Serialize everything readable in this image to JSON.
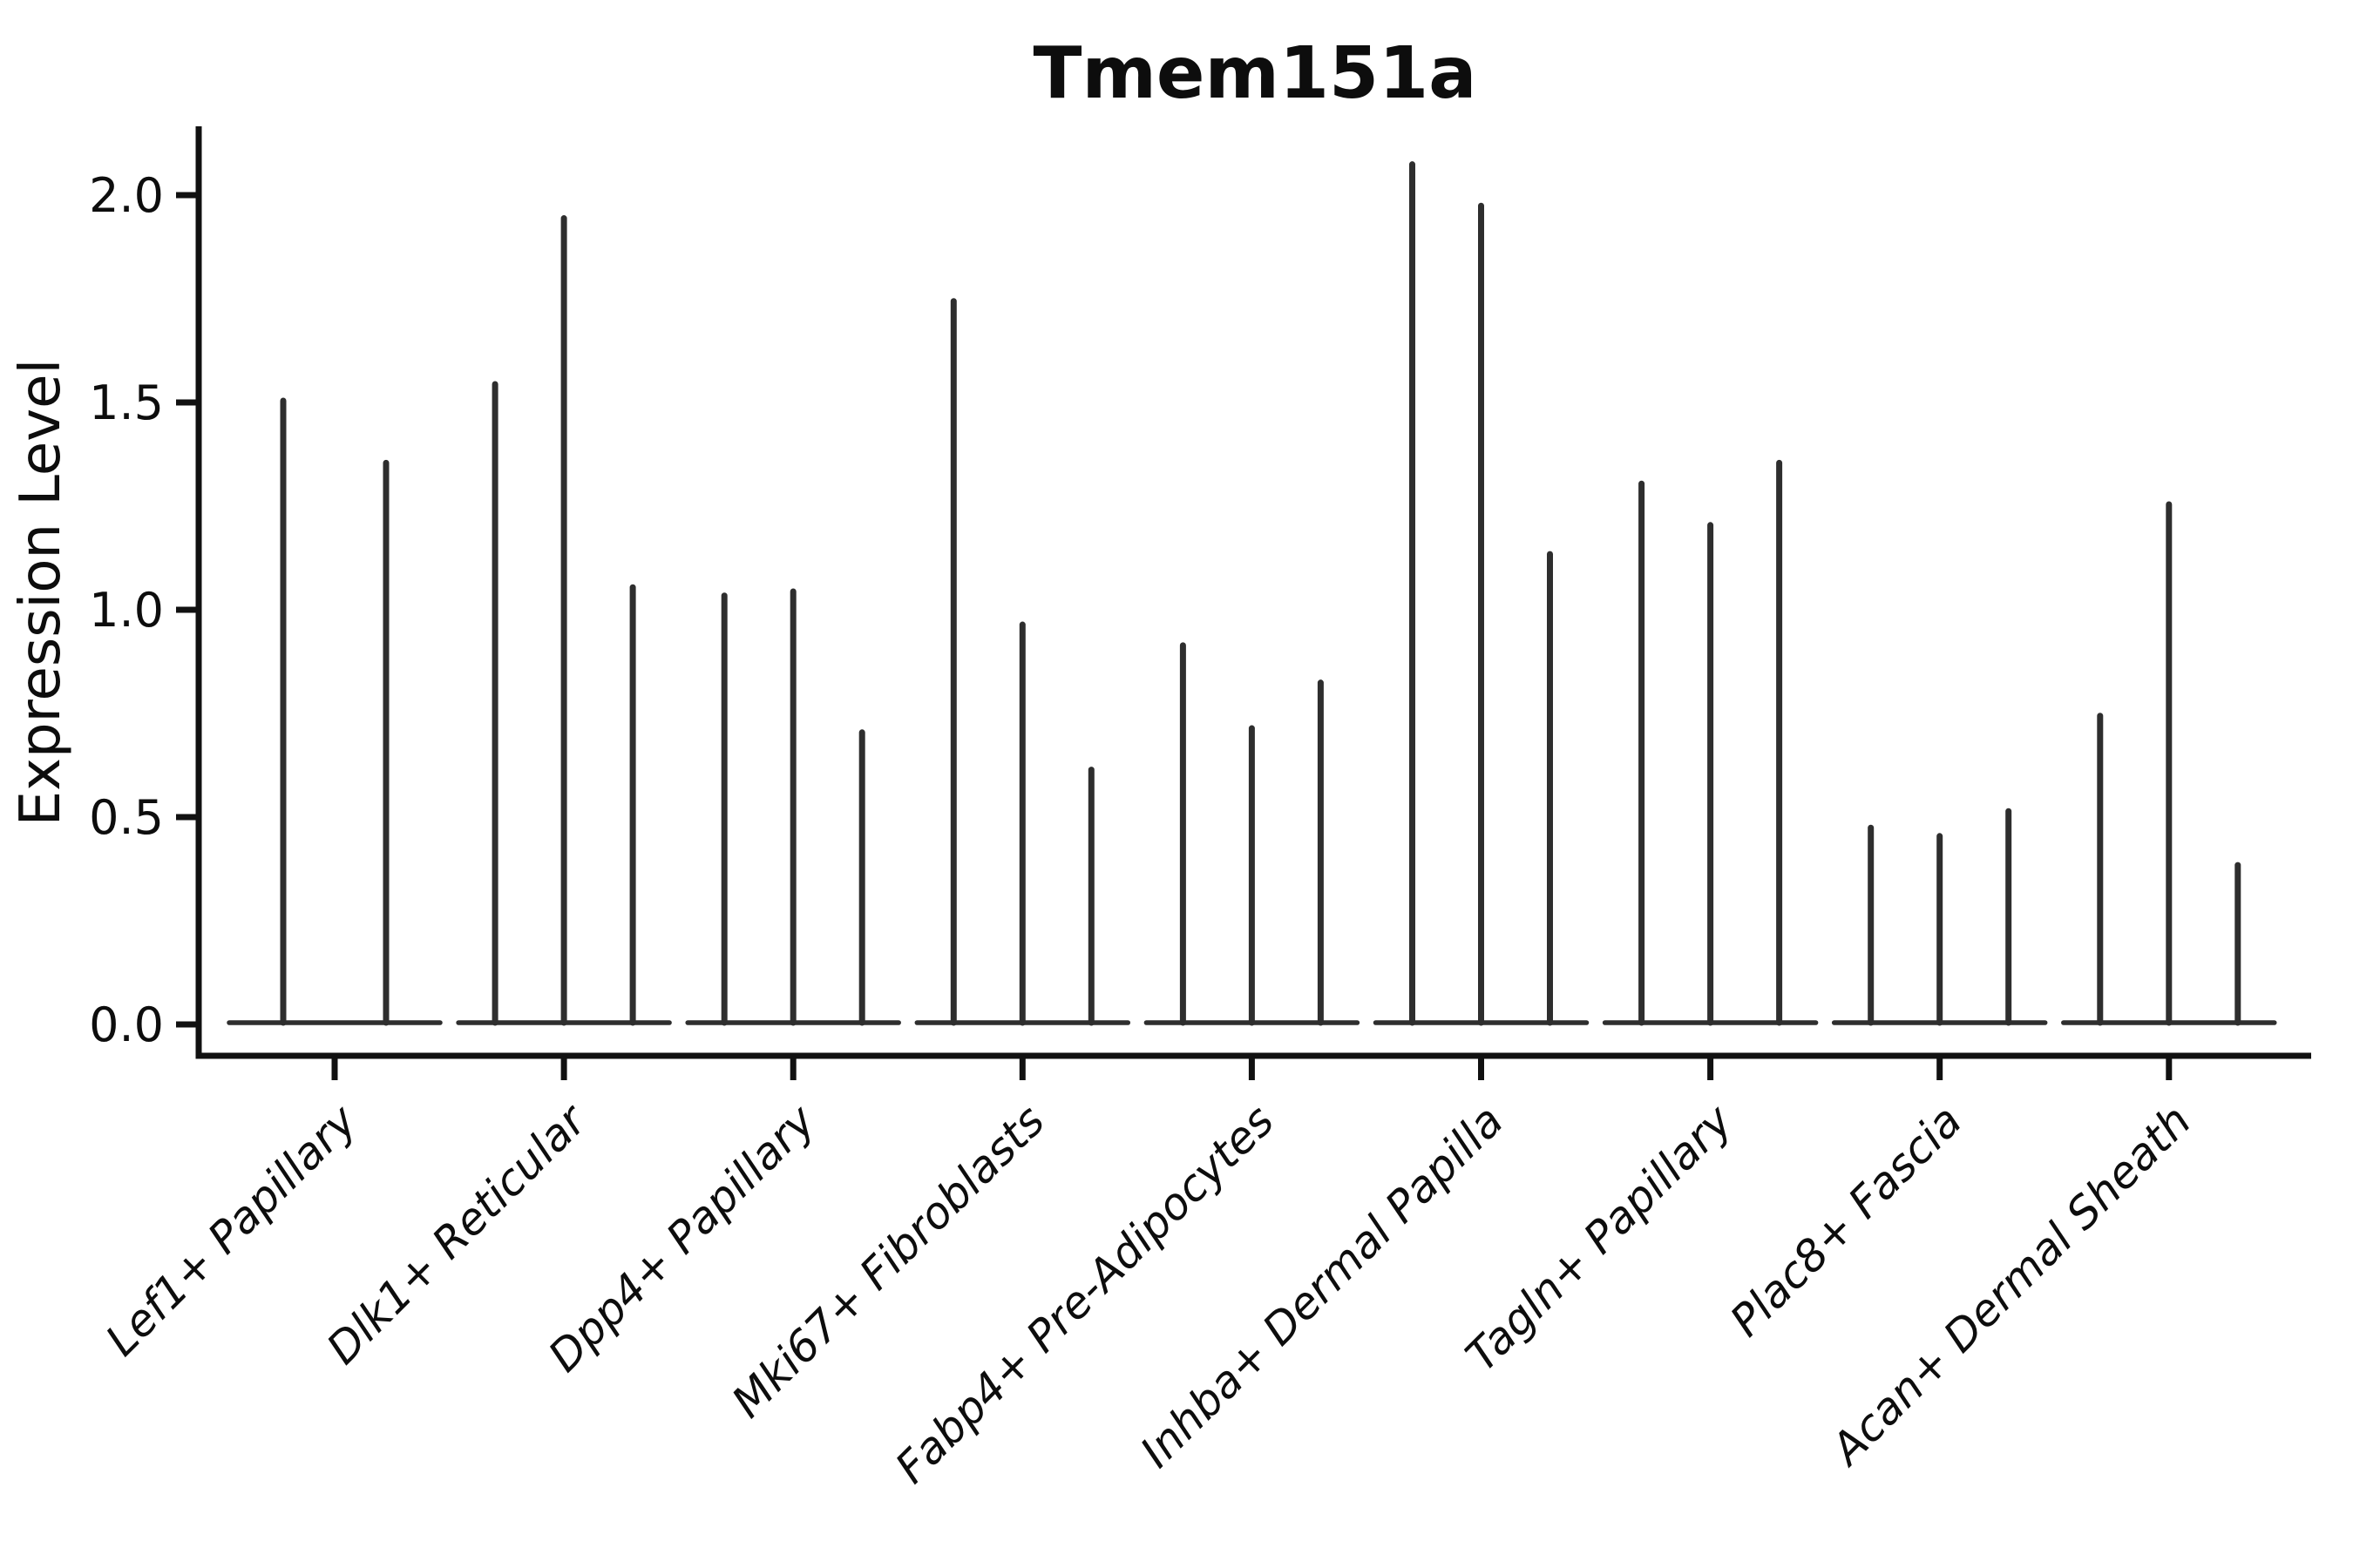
{
  "chart_data": {
    "type": "violin",
    "title": "Tmem151a",
    "ylabel": "Expression Level",
    "xlabel": "",
    "grid": false,
    "legend": false,
    "background": "#ffffff",
    "ylim": [
      0,
      2.15
    ],
    "y_ticks": [
      "0.0",
      "0.5",
      "1.0",
      "1.5",
      "2.0"
    ],
    "y_tick_values": [
      0.0,
      0.5,
      1.0,
      1.5,
      2.0
    ],
    "x_tick_label_rotation_deg": 45,
    "x_tick_label_style": "italic",
    "categories": [
      "Lef1+ Papillary",
      "Dlk1+ Reticular",
      "Dpp4+ Papillary",
      "Mki67+ Fibroblasts",
      "Fabp4+ Pre-Adipocytes",
      "Inhba+ Dermal Papilla",
      "Tagln+ Papillary",
      "Plac8+ Fascia",
      "Acan+ Dermal Sheath"
    ],
    "violin_max_values": [
      [
        1.5,
        1.35
      ],
      [
        1.54,
        1.94,
        1.05
      ],
      [
        1.03,
        1.04,
        0.7
      ],
      [
        1.74,
        0.96,
        0.61
      ],
      [
        0.91,
        0.71,
        0.82
      ],
      [
        2.07,
        1.97,
        1.13
      ],
      [
        1.3,
        1.2,
        1.35
      ],
      [
        0.47,
        0.45,
        0.51
      ],
      [
        0.74,
        1.25,
        0.38
      ]
    ],
    "colors": {
      "violin": "#2e2e2e",
      "spine": "#111111",
      "text": "#0d0d0d"
    }
  }
}
